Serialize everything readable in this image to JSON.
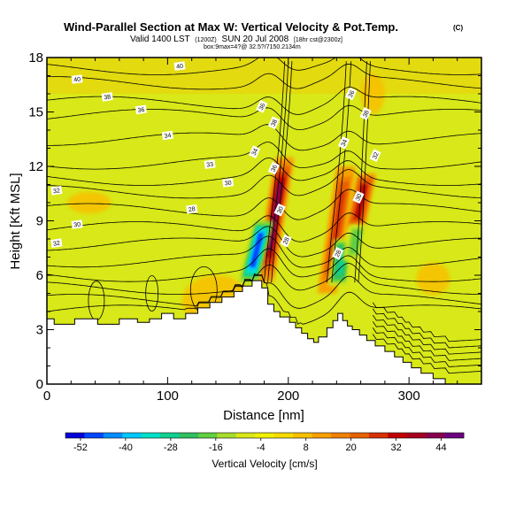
{
  "title": {
    "main": "Wind-Parallel Section at Max W: Vertical Velocity & Pot.Temp.",
    "copyright": "(C)",
    "valid_prefix": "Valid 1400 LST",
    "valid_z": "(1200Z)",
    "valid_date": "SUN 20 Jul 2008",
    "valid_model": "[18hr cst@2300z]",
    "box": "box:9max=4?@ 32.5?/7150.2134m"
  },
  "chart_data": {
    "type": "heatmap",
    "xlabel": "Distance [nm]",
    "ylabel": "Height [Kft MSL]",
    "xlim": [
      0,
      360
    ],
    "ylim": [
      0,
      18
    ],
    "xticks": [
      "0",
      "100",
      "200",
      "300"
    ],
    "xtick_values": [
      0,
      100,
      200,
      300
    ],
    "yticks": [
      "0",
      "3",
      "6",
      "9",
      "12",
      "15",
      "18"
    ],
    "ytick_values": [
      0,
      3,
      6,
      9,
      12,
      15,
      18
    ],
    "grid": false,
    "colorbar": {
      "label": "Vertical Velocity [cm/s]",
      "ticks": [
        "-52",
        "-40",
        "-28",
        "-16",
        "-4",
        "8",
        "20",
        "32",
        "44"
      ],
      "tick_values": [
        -52,
        -40,
        -28,
        -16,
        -4,
        8,
        20,
        32,
        44
      ],
      "range": [
        -56,
        50
      ],
      "colors": [
        "#0000d8",
        "#0046ff",
        "#008cff",
        "#00c8ff",
        "#00e0c8",
        "#10d090",
        "#30c060",
        "#60d040",
        "#a8dc2c",
        "#d8e818",
        "#f0f000",
        "#f8dc00",
        "#f8c000",
        "#f8a000",
        "#f08000",
        "#e86000",
        "#d83000",
        "#c00000",
        "#a80020",
        "#880050",
        "#6c0080"
      ]
    },
    "terrain_profile": {
      "x": [
        0,
        6,
        6,
        23,
        23,
        42,
        42,
        60,
        60,
        75,
        75,
        85,
        85,
        95,
        95,
        105,
        105,
        115,
        115,
        125,
        125,
        135,
        135,
        145,
        145,
        155,
        155,
        162,
        162,
        170,
        170,
        178,
        178,
        183,
        183,
        188,
        188,
        193,
        193,
        201,
        201,
        206,
        206,
        211,
        211,
        216,
        216,
        221,
        221,
        225,
        225,
        232,
        232,
        237,
        237,
        241,
        241,
        245,
        245,
        249,
        249,
        253,
        253,
        259,
        259,
        265,
        265,
        272,
        272,
        280,
        280,
        288,
        288,
        295,
        295,
        302,
        302,
        310,
        310,
        320,
        320,
        330,
        330,
        360
      ],
      "height": [
        3.6,
        3.6,
        3.3,
        3.3,
        3.6,
        3.6,
        3.3,
        3.3,
        3.6,
        3.6,
        3.4,
        3.4,
        3.6,
        3.6,
        3.9,
        3.9,
        3.6,
        3.6,
        3.9,
        3.9,
        4.2,
        4.2,
        4.5,
        4.5,
        4.8,
        4.8,
        5.1,
        5.1,
        5.4,
        5.4,
        5.7,
        5.7,
        5.3,
        5.3,
        4.4,
        4.4,
        4.0,
        4.0,
        3.7,
        3.7,
        3.4,
        3.4,
        3.1,
        3.1,
        2.8,
        2.8,
        2.5,
        2.5,
        2.3,
        2.3,
        2.6,
        2.6,
        3.1,
        3.1,
        3.5,
        3.5,
        3.9,
        3.9,
        3.5,
        3.5,
        3.2,
        3.2,
        3.0,
        3.0,
        2.7,
        2.7,
        2.4,
        2.4,
        2.1,
        2.1,
        1.8,
        1.8,
        1.5,
        1.5,
        1.2,
        1.2,
        0.9,
        0.9,
        0.6,
        0.6,
        0.3,
        0.3,
        0.0,
        0.0
      ]
    },
    "updraft_bands": [
      {
        "x_top": 197,
        "x_bottom": 180,
        "y_top": 12.5,
        "y_bottom": 5.6,
        "max_value": 40
      },
      {
        "x_top": 248,
        "x_bottom": 232,
        "y_top": 12.0,
        "y_bottom": 5.0,
        "max_value": 26
      },
      {
        "x_top": 265,
        "x_bottom": 255,
        "y_top": 11.6,
        "y_bottom": 8.4,
        "max_value": 32
      }
    ],
    "downdraft_bands": [
      {
        "x_top": 180,
        "x_bottom": 167,
        "y_top": 9.0,
        "y_bottom": 5.6,
        "min_value": -48
      },
      {
        "x_top": 246,
        "x_bottom": 241,
        "y_top": 8.0,
        "y_bottom": 5.4,
        "min_value": -30
      },
      {
        "x_top": 258,
        "x_bottom": 253,
        "y_top": 8.8,
        "y_bottom": 6.8,
        "min_value": -20
      }
    ],
    "weak_updraft_patches": [
      {
        "x": 35,
        "y": 10.0,
        "rx": 18,
        "ry": 0.6
      },
      {
        "x": 140,
        "y": 4.6,
        "rx": 28,
        "ry": 1.4
      },
      {
        "x": 320,
        "y": 5.8,
        "rx": 14,
        "ry": 0.9
      },
      {
        "x": 270,
        "y": 16.0,
        "rx": 10,
        "ry": 1.1
      }
    ],
    "isentrope_levels": [
      {
        "label": "32",
        "base_height": 7.7,
        "x": 8
      },
      {
        "label": "30",
        "base_height": 8.6,
        "x": 25
      },
      {
        "label": "28",
        "base_height": 9.6,
        "x": 120
      },
      {
        "label": "32",
        "base_height": 10.6,
        "x": 8
      },
      {
        "label": "30",
        "base_height": 11.3,
        "x": 150
      },
      {
        "label": "33",
        "base_height": 12.2,
        "x": 135
      },
      {
        "label": "34",
        "base_height": 13.5,
        "x": 100
      },
      {
        "label": "36",
        "base_height": 14.8,
        "x": 78
      },
      {
        "label": "38",
        "base_height": 15.5,
        "x": 50
      },
      {
        "label": "40",
        "base_height": 16.6,
        "x": 25
      },
      {
        "label": "40",
        "base_height": 17.4,
        "x": 110
      }
    ],
    "isentrope_peak_labels": [
      {
        "label": "36",
        "x": 178,
        "y": 15.3
      },
      {
        "label": "34",
        "x": 172,
        "y": 12.8
      },
      {
        "label": "38",
        "x": 188,
        "y": 14.4
      },
      {
        "label": "36",
        "x": 188,
        "y": 11.9
      },
      {
        "label": "30",
        "x": 193,
        "y": 9.6
      },
      {
        "label": "28",
        "x": 198,
        "y": 7.9
      },
      {
        "label": "28",
        "x": 241,
        "y": 7.2
      },
      {
        "label": "34",
        "x": 246,
        "y": 13.3
      },
      {
        "label": "36",
        "x": 252,
        "y": 16.0
      },
      {
        "label": "38",
        "x": 264,
        "y": 14.9
      },
      {
        "label": "32",
        "x": 272,
        "y": 12.6
      },
      {
        "label": "30",
        "x": 258,
        "y": 10.3
      }
    ]
  }
}
